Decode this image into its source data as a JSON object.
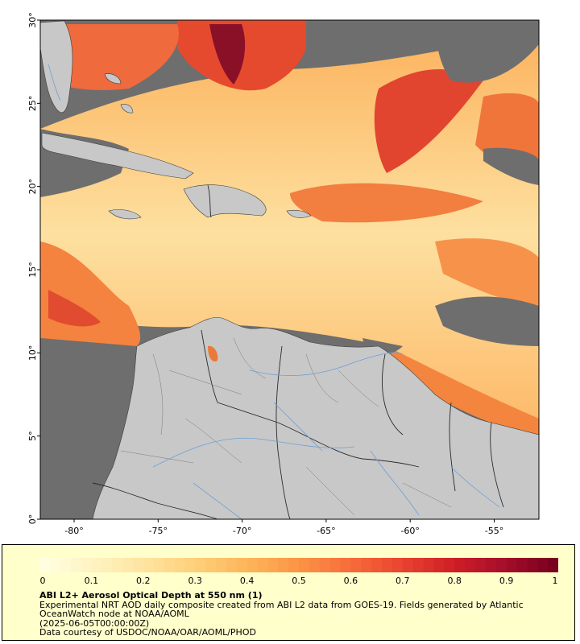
{
  "map": {
    "lat_ticks": [
      "30°",
      "25°",
      "20°",
      "15°",
      "10°",
      "5°",
      "0°"
    ],
    "lon_ticks": [
      "-80°",
      "-75°",
      "-70°",
      "-65°",
      "-60°",
      "-55°"
    ],
    "colors": {
      "ocean_nodata": "#6e6e6e",
      "land": "#c8c8c8",
      "rivers": "#6e9fd6",
      "borders": "#3c3c3c"
    }
  },
  "colorbar": {
    "ticks": [
      "0",
      "0.1",
      "0.2",
      "0.3",
      "0.4",
      "0.5",
      "0.6",
      "0.7",
      "0.8",
      "0.9",
      "1"
    ],
    "palette": [
      "#ffffe0",
      "#fff2c0",
      "#ffe39e",
      "#ffcf78",
      "#fdb55a",
      "#fc9446",
      "#f76d3a",
      "#ea4430",
      "#d11f27",
      "#a60f2a",
      "#7a0020"
    ]
  },
  "caption": {
    "title": "ABI L2+ Aerosol Optical Depth at 550 nm (1)",
    "line1": "Experimental NRT AOD daily composite created from ABI L2 data from GOES-19. Fields generated by Atlantic",
    "line2": "OceanWatch node at NOAA/AOML",
    "line3": "(2025-06-05T00:00:00Z)",
    "line4": "Data courtesy of USDOC/NOAA/OAR/AOML/PHOD"
  }
}
